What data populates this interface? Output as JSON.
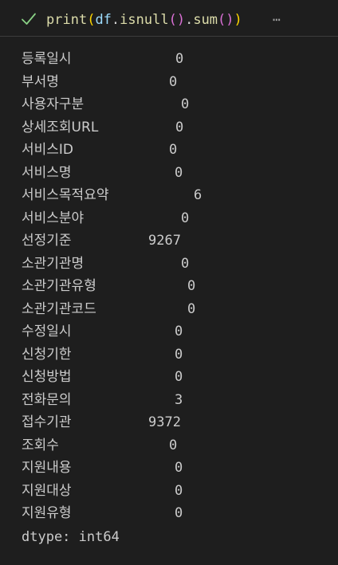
{
  "cell": {
    "status_icon": "check-icon",
    "status_color": "#89d185",
    "code": {
      "fn": "print",
      "open1": "(",
      "var": "df",
      "dot1": ".",
      "method1": "isnull",
      "call1": "()",
      "dot2": ".",
      "method2": "sum",
      "call2": "()",
      "close1": ")"
    },
    "more_icon": "ellipsis-icon",
    "more_glyph": "⋯"
  },
  "output": {
    "rows": [
      {
        "name": "등록일시",
        "value": "0"
      },
      {
        "name": "부서명",
        "value": "0"
      },
      {
        "name": "사용자구분",
        "value": "0"
      },
      {
        "name": "상세조회URL",
        "value": "0"
      },
      {
        "name": "서비스ID",
        "value": "0"
      },
      {
        "name": "서비스명",
        "value": "0"
      },
      {
        "name": "서비스목적요약",
        "value": "6"
      },
      {
        "name": "서비스분야",
        "value": "0"
      },
      {
        "name": "선정기준",
        "value": "9267"
      },
      {
        "name": "소관기관명",
        "value": "0"
      },
      {
        "name": "소관기관유형",
        "value": "0"
      },
      {
        "name": "소관기관코드",
        "value": "0"
      },
      {
        "name": "수정일시",
        "value": "0"
      },
      {
        "name": "신청기한",
        "value": "0"
      },
      {
        "name": "신청방법",
        "value": "0"
      },
      {
        "name": "전화문의",
        "value": "3"
      },
      {
        "name": "접수기관",
        "value": "9372"
      },
      {
        "name": "조회수",
        "value": "0"
      },
      {
        "name": "지원내용",
        "value": "0"
      },
      {
        "name": "지원대상",
        "value": "0"
      },
      {
        "name": "지원유형",
        "value": "0"
      }
    ],
    "dtype": "dtype: int64"
  }
}
